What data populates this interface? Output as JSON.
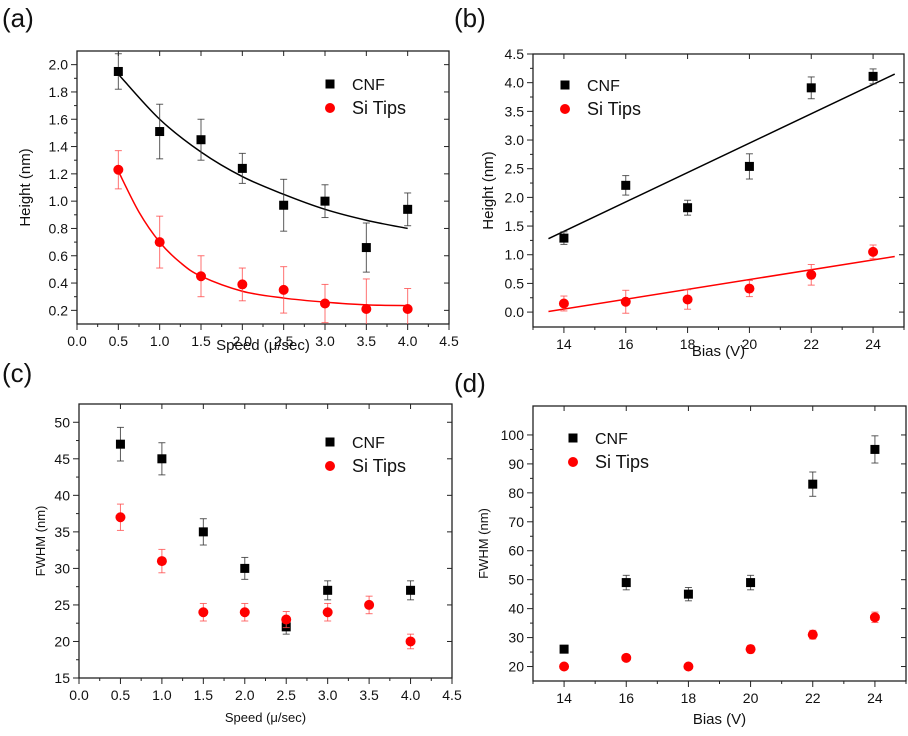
{
  "chart_data": [
    {
      "id": "a",
      "panel_label": "(a)",
      "type": "scatter",
      "xlabel": "Speed (μ/sec)",
      "ylabel": "Height (nm)",
      "xlim": [
        0.0,
        4.5
      ],
      "ylim": [
        0.1,
        2.1
      ],
      "xticks": [
        "0.0",
        "0.5",
        "1.0",
        "1.5",
        "2.0",
        "2.5",
        "3.0",
        "3.5",
        "4.0",
        "4.5"
      ],
      "yticks": [
        "0.2",
        "0.4",
        "0.6",
        "0.8",
        "1.0",
        "1.2",
        "1.4",
        "1.6",
        "1.8",
        "2.0"
      ],
      "legend": "top-right",
      "grid": false,
      "series": [
        {
          "name": "CNF",
          "marker": "square",
          "color": "#000000",
          "x": [
            0.5,
            1.0,
            1.5,
            2.0,
            2.5,
            3.0,
            3.5,
            4.0
          ],
          "y": [
            1.95,
            1.51,
            1.45,
            1.24,
            0.97,
            1.0,
            0.66,
            0.94
          ],
          "err": [
            0.13,
            0.2,
            0.15,
            0.11,
            0.19,
            0.12,
            0.18,
            0.12
          ],
          "fit": {
            "type": "exponential-decay",
            "x": [
              0.5,
              4.0
            ],
            "points": [
              [
                0.5,
                1.93
              ],
              [
                1.0,
                1.6
              ],
              [
                1.5,
                1.36
              ],
              [
                2.0,
                1.18
              ],
              [
                2.5,
                1.05
              ],
              [
                3.0,
                0.94
              ],
              [
                3.5,
                0.86
              ],
              [
                4.0,
                0.8
              ]
            ]
          }
        },
        {
          "name": "Si Tips",
          "marker": "circle",
          "color": "#ff0000",
          "x": [
            0.5,
            1.0,
            1.5,
            2.0,
            2.5,
            3.0,
            3.5,
            4.0
          ],
          "y": [
            1.23,
            0.7,
            0.45,
            0.39,
            0.35,
            0.25,
            0.21,
            0.21
          ],
          "err": [
            0.14,
            0.19,
            0.15,
            0.12,
            0.17,
            0.14,
            0.22,
            0.15
          ],
          "fit": {
            "type": "exponential-decay",
            "x": [
              0.5,
              4.0
            ],
            "points": [
              [
                0.5,
                1.22
              ],
              [
                0.75,
                0.92
              ],
              [
                1.0,
                0.7
              ],
              [
                1.25,
                0.55
              ],
              [
                1.5,
                0.45
              ],
              [
                2.0,
                0.34
              ],
              [
                2.5,
                0.29
              ],
              [
                3.0,
                0.26
              ],
              [
                3.5,
                0.24
              ],
              [
                4.0,
                0.235
              ]
            ]
          }
        }
      ]
    },
    {
      "id": "b",
      "panel_label": "(b)",
      "type": "scatter",
      "xlabel": "Bias (V)",
      "ylabel": "Height (nm)",
      "xlim": [
        13.0,
        25.0
      ],
      "ylim": [
        -0.26,
        4.5
      ],
      "xticks": [
        "14",
        "16",
        "18",
        "20",
        "22",
        "24"
      ],
      "yticks": [
        "0.0",
        "0.5",
        "1.0",
        "1.5",
        "2.0",
        "2.5",
        "3.0",
        "3.5",
        "4.0",
        "4.5"
      ],
      "legend": "top-left",
      "grid": false,
      "series": [
        {
          "name": "CNF",
          "marker": "square",
          "color": "#000000",
          "x": [
            14,
            16,
            18,
            20,
            22,
            24
          ],
          "y": [
            1.29,
            2.21,
            1.82,
            2.54,
            3.91,
            4.11
          ],
          "err": [
            0.11,
            0.17,
            0.13,
            0.22,
            0.19,
            0.13
          ],
          "fit": {
            "type": "linear",
            "x": [
              13.5,
              24.7
            ],
            "y": [
              1.28,
              4.15
            ]
          }
        },
        {
          "name": "Si Tips",
          "marker": "circle",
          "color": "#ff0000",
          "x": [
            14,
            16,
            18,
            20,
            22,
            24
          ],
          "y": [
            0.15,
            0.18,
            0.22,
            0.41,
            0.65,
            1.05
          ],
          "err": [
            0.13,
            0.2,
            0.17,
            0.14,
            0.18,
            0.12
          ],
          "fit": {
            "type": "linear",
            "x": [
              13.5,
              24.7
            ],
            "y": [
              0.01,
              0.97
            ]
          }
        }
      ]
    },
    {
      "id": "c",
      "panel_label": "(c)",
      "type": "scatter",
      "xlabel": "Speed (μ/sec)",
      "ylabel": "FWHM (nm)",
      "xlim": [
        0.0,
        4.5
      ],
      "ylim": [
        15,
        52.5
      ],
      "xticks": [
        "0.0",
        "0.5",
        "1.0",
        "1.5",
        "2.0",
        "2.5",
        "3.0",
        "3.5",
        "4.0",
        "4.5"
      ],
      "yticks": [
        "15",
        "20",
        "25",
        "30",
        "35",
        "40",
        "45",
        "50"
      ],
      "legend": "top-right",
      "grid": false,
      "series": [
        {
          "name": "CNF",
          "marker": "square",
          "color": "#000000",
          "x": [
            0.5,
            1.0,
            1.5,
            2.0,
            2.5,
            3.0,
            4.0
          ],
          "y": [
            47,
            45,
            35,
            30,
            22,
            27,
            27
          ],
          "err": [
            2.3,
            2.2,
            1.8,
            1.5,
            1.0,
            1.3,
            1.3
          ]
        },
        {
          "name": "Si Tips",
          "marker": "circle",
          "color": "#ff0000",
          "x": [
            0.5,
            1.0,
            1.5,
            2.0,
            2.5,
            3.0,
            3.5,
            4.0
          ],
          "y": [
            37,
            31,
            24,
            24,
            23,
            24,
            25,
            20
          ],
          "err": [
            1.8,
            1.6,
            1.2,
            1.2,
            1.1,
            1.2,
            1.2,
            1.0
          ]
        }
      ]
    },
    {
      "id": "d",
      "panel_label": "(d)",
      "type": "scatter",
      "xlabel": "Bias (V)",
      "ylabel": "FWHM (nm)",
      "xlim": [
        13.0,
        25.0
      ],
      "ylim": [
        15,
        110
      ],
      "xticks": [
        "14",
        "16",
        "18",
        "20",
        "22",
        "24"
      ],
      "yticks": [
        "20",
        "30",
        "40",
        "50",
        "60",
        "70",
        "80",
        "90",
        "100"
      ],
      "legend": "top-left",
      "grid": false,
      "series": [
        {
          "name": "CNF",
          "marker": "square",
          "color": "#000000",
          "x": [
            14,
            16,
            18,
            20,
            22,
            24
          ],
          "y": [
            26,
            49,
            45,
            49,
            83,
            95
          ],
          "err": [
            1.3,
            2.5,
            2.3,
            2.5,
            4.2,
            4.7
          ]
        },
        {
          "name": "Si Tips",
          "marker": "circle",
          "color": "#ff0000",
          "x": [
            14,
            16,
            18,
            20,
            22,
            24
          ],
          "y": [
            20,
            23,
            20,
            26,
            31,
            37
          ],
          "err": [
            0.8,
            1.0,
            0.8,
            1.3,
            1.5,
            1.8
          ]
        }
      ]
    }
  ]
}
